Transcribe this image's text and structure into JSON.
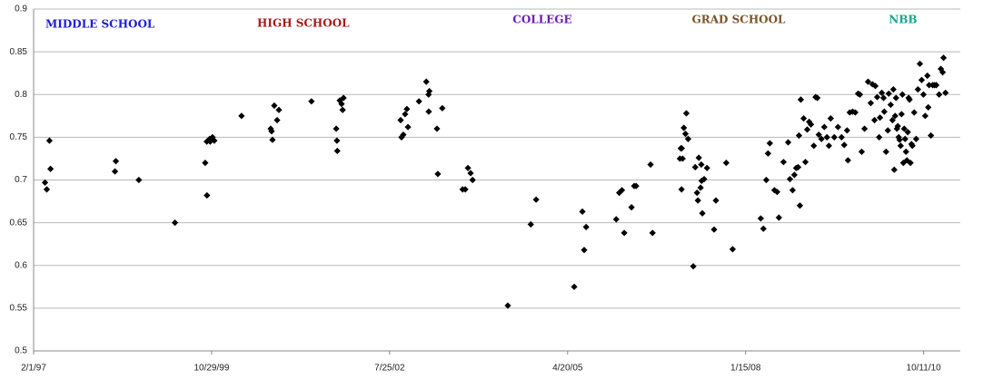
{
  "chart_data": {
    "type": "scatter",
    "color": "#000000",
    "grid": true,
    "xlim": [
      "2/1/97",
      "5/5/11"
    ],
    "xticks": [
      "2/1/97",
      "10/29/99",
      "7/25/02",
      "4/20/05",
      "1/15/08",
      "10/11/10"
    ],
    "ylim": [
      0.5,
      0.9
    ],
    "yticks": [
      0.5,
      0.55,
      0.6,
      0.65,
      0.7,
      0.75,
      0.8,
      0.85,
      0.9
    ],
    "annotations": [
      {
        "text": "MIDDLE SCHOOL",
        "color": "#1c1cd8"
      },
      {
        "text": "HIGH SCHOOL",
        "color": "#a31a1a"
      },
      {
        "text": "COLLEGE",
        "color": "#6a1cb4"
      },
      {
        "text": "GRAD SCHOOL",
        "color": "#7a5428"
      },
      {
        "text": "NBB",
        "color": "#1ca391"
      }
    ],
    "x": [
      "4/6/97",
      "4/16/97",
      "5/7/97",
      "5/1/97",
      "5/4/98",
      "5/9/98",
      "9/15/98",
      "4/6/99",
      "9/23/99",
      "10/3/99",
      "10/2/99",
      "10/18/99",
      "10/21/99",
      "11/3/99",
      "11/13/99",
      "4/14/00",
      "9/25/00",
      "9/30/00",
      "10/5/00",
      "10/15/00",
      "10/31/00",
      "11/10/00",
      "5/12/01",
      "9/28/01",
      "10/2/01",
      "10/4/01",
      "10/18/01",
      "10/28/01",
      "11/3/01",
      "11/8/01",
      "9/25/02",
      "9/30/02",
      "10/10/02",
      "10/20/02",
      "10/30/02",
      "11/5/02",
      "1/6/03",
      "2/16/03",
      "3/1/03",
      "3/2/03",
      "3/5/03",
      "4/17/03",
      "4/22/03",
      "5/17/03",
      "9/8/03",
      "9/23/03",
      "10/8/03",
      "10/23/03",
      "11/3/03",
      "5/19/04",
      "9/25/04",
      "10/25/04",
      "5/27/05",
      "7/12/05",
      "7/22/05",
      "8/2/05",
      "1/18/06",
      "2/4/06",
      "2/19/06",
      "4/14/06",
      "4/29/06",
      "5/10/06",
      "3/4/06",
      "7/30/06",
      "8/10/06",
      "1/11/07",
      "1/16/07",
      "1/21/07",
      "1/26/07",
      "1/20/07",
      "2/2/07",
      "2/11/07",
      "2/16/07",
      "2/26/07",
      "3/27/07",
      "4/7/07",
      "4/17/07",
      "4/22/07",
      "4/27/07",
      "5/7/07",
      "5/11/07",
      "5/17/07",
      "5/13/07",
      "5/27/07",
      "6/12/07",
      "7/22/07",
      "8/1/07",
      "9/28/07",
      "11/3/07",
      "4/9/08",
      "4/24/08",
      "5/10/08",
      "5/20/08",
      "5/30/08",
      "6/25/08",
      "7/10/08",
      "7/20/08",
      "8/15/08",
      "9/10/08",
      "9/20/08",
      "10/5/08",
      "10/15/08",
      "10/25/08",
      "11/5/08",
      "11/15/08",
      "11/10/08",
      "11/20/08",
      "12/6/08",
      "12/16/08",
      "12/26/08",
      "1/6/09",
      "1/16/09",
      "2/1/09",
      "2/11/09",
      "2/21/09",
      "3/1/09",
      "3/16/09",
      "4/1/09",
      "4/16/09",
      "4/27/09",
      "5/7/09",
      "5/27/09",
      "6/17/09",
      "7/7/09",
      "7/22/09",
      "8/7/09",
      "8/12/09",
      "8/22/09",
      "9/7/09",
      "9/22/09",
      "10/8/09",
      "10/18/09",
      "10/28/09",
      "11/13/09",
      "12/3/09",
      "12/18/09",
      "12/28/09",
      "1/8/10",
      "1/13/10",
      "1/23/10",
      "2/3/10",
      "2/8/10",
      "2/18/10",
      "2/28/10",
      "3/4/10",
      "3/14/10",
      "3/24/10",
      "3/29/10",
      "4/9/10",
      "4/19/10",
      "4/24/10",
      "4/29/10",
      "5/4/10",
      "5/9/10",
      "5/14/10",
      "5/19/10",
      "5/24/10",
      "5/29/10",
      "6/4/10",
      "6/9/10",
      "6/14/10",
      "6/19/10",
      "6/24/10",
      "6/29/10",
      "7/4/10",
      "7/9/10",
      "7/14/10",
      "7/19/10",
      "7/24/10",
      "7/29/10",
      "8/4/10",
      "8/9/10",
      "8/19/10",
      "8/30/10",
      "9/9/10",
      "9/20/10",
      "9/30/10",
      "10/10/10",
      "10/20/10",
      "11/1/10",
      "11/6/10",
      "11/11/10",
      "11/21/10",
      "12/1/10",
      "12/11/10",
      "12/21/10",
      "1/6/11",
      "1/16/11",
      "1/26/11",
      "1/31/11",
      "2/11/11"
    ],
    "values": [
      0.697,
      0.689,
      0.713,
      0.746,
      0.71,
      0.722,
      0.7,
      0.65,
      0.72,
      0.682,
      0.745,
      0.748,
      0.745,
      0.75,
      0.746,
      0.775,
      0.76,
      0.757,
      0.747,
      0.787,
      0.77,
      0.782,
      0.792,
      0.76,
      0.746,
      0.734,
      0.793,
      0.789,
      0.782,
      0.796,
      0.77,
      0.75,
      0.753,
      0.777,
      0.783,
      0.762,
      0.792,
      0.815,
      0.8,
      0.78,
      0.804,
      0.76,
      0.707,
      0.784,
      0.689,
      0.689,
      0.714,
      0.708,
      0.7,
      0.553,
      0.648,
      0.677,
      0.575,
      0.663,
      0.618,
      0.645,
      0.654,
      0.685,
      0.688,
      0.668,
      0.693,
      0.693,
      0.638,
      0.718,
      0.638,
      0.725,
      0.737,
      0.737,
      0.725,
      0.689,
      0.761,
      0.754,
      0.778,
      0.748,
      0.599,
      0.715,
      0.685,
      0.676,
      0.726,
      0.691,
      0.718,
      0.661,
      0.699,
      0.701,
      0.714,
      0.642,
      0.676,
      0.72,
      0.619,
      0.655,
      0.643,
      0.7,
      0.731,
      0.743,
      0.688,
      0.686,
      0.656,
      0.721,
      0.744,
      0.701,
      0.688,
      0.706,
      0.714,
      0.715,
      0.67,
      0.752,
      0.794,
      0.772,
      0.721,
      0.759,
      0.768,
      0.765,
      0.74,
      0.797,
      0.796,
      0.753,
      0.748,
      0.762,
      0.75,
      0.74,
      0.772,
      0.75,
      0.762,
      0.75,
      0.741,
      0.758,
      0.723,
      0.779,
      0.78,
      0.779,
      0.801,
      0.8,
      0.733,
      0.76,
      0.815,
      0.79,
      0.812,
      0.77,
      0.81,
      0.797,
      0.75,
      0.773,
      0.802,
      0.796,
      0.78,
      0.733,
      0.758,
      0.801,
      0.788,
      0.77,
      0.806,
      0.712,
      0.775,
      0.796,
      0.76,
      0.763,
      0.75,
      0.747,
      0.74,
      0.777,
      0.8,
      0.72,
      0.76,
      0.748,
      0.733,
      0.723,
      0.756,
      0.796,
      0.794,
      0.72,
      0.742,
      0.74,
      0.779,
      0.748,
      0.806,
      0.836,
      0.817,
      0.8,
      0.775,
      0.822,
      0.785,
      0.811,
      0.752,
      0.811,
      0.811,
      0.811,
      0.8,
      0.83,
      0.826,
      0.843,
      0.802
    ]
  }
}
